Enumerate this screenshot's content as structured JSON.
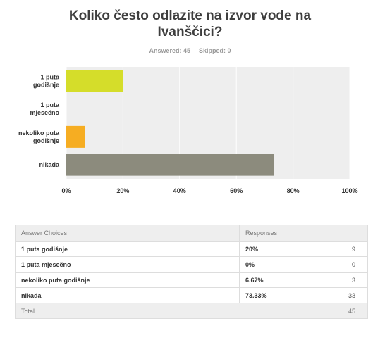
{
  "question": {
    "title_line1": "Koliko često odlazite na izvor vode na",
    "title_line2": "Ivanščici?",
    "answered": "Answered: 45",
    "skipped": "Skipped: 0"
  },
  "chart_data": {
    "type": "bar",
    "orientation": "horizontal",
    "categories": [
      [
        "1 puta",
        "godišnje"
      ],
      [
        "1 puta",
        "mjesečno"
      ],
      [
        "nekoliko puta",
        "godišnje"
      ],
      [
        "nikada"
      ]
    ],
    "values": [
      20,
      0,
      6.67,
      73.33
    ],
    "colors": [
      "#d5dd2a",
      "#4eaee2",
      "#f6ad22",
      "#8c8b7d"
    ],
    "xlim": [
      0,
      100
    ],
    "xticks": [
      "0%",
      "20%",
      "40%",
      "60%",
      "80%",
      "100%"
    ],
    "grid": true,
    "plot_background": "#eeeeee"
  },
  "table": {
    "headers": [
      "Answer Choices",
      "Responses"
    ],
    "rows": [
      {
        "choice": "1 puta godišnje",
        "percent": "20%",
        "count": "9"
      },
      {
        "choice": "1 puta mjesečno",
        "percent": "0%",
        "count": "0"
      },
      {
        "choice": "nekoliko puta godišnje",
        "percent": "6.67%",
        "count": "3"
      },
      {
        "choice": "nikada",
        "percent": "73.33%",
        "count": "33"
      }
    ],
    "total_label": "Total",
    "total_value": "45"
  }
}
